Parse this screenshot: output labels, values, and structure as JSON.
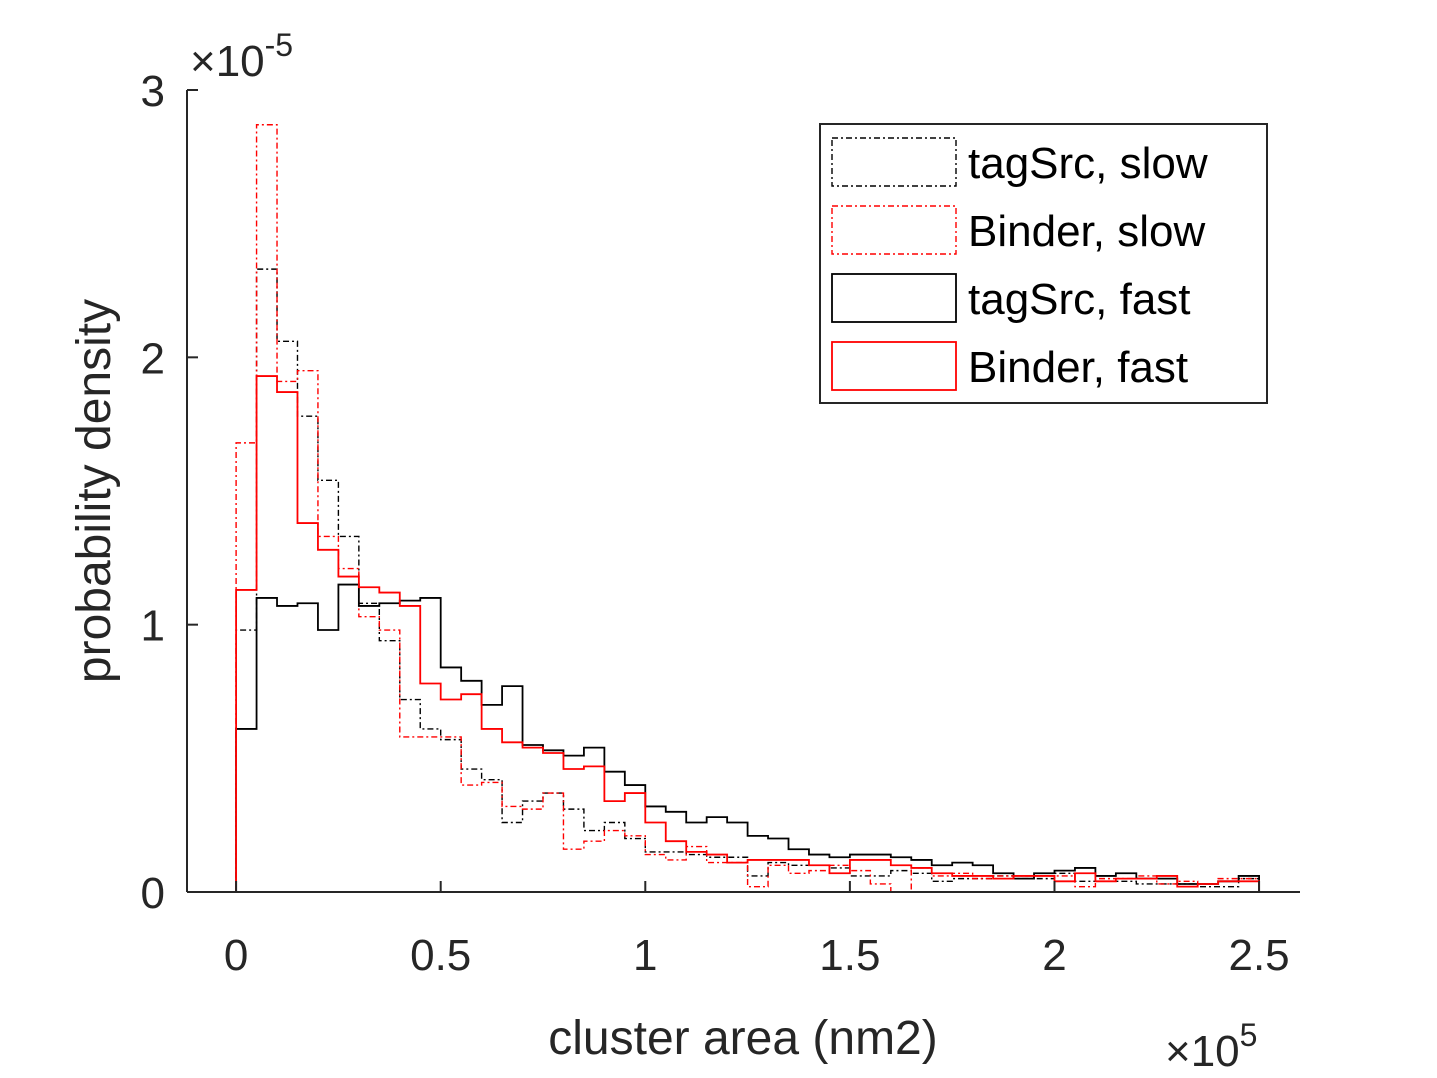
{
  "chart_data": {
    "type": "histogram",
    "xlabel": "cluster area (nm2)",
    "ylabel": "probability density",
    "x_multiplier_label": "×10",
    "x_multiplier_exponent": "5",
    "y_multiplier_label": "×10",
    "y_multiplier_exponent": "-5",
    "xlim": [
      -0.12,
      2.6
    ],
    "ylim": [
      0,
      3
    ],
    "x_ticks": [
      0,
      0.5,
      1,
      1.5,
      2,
      2.5
    ],
    "x_tick_labels": [
      "0",
      "0.5",
      "1",
      "1.5",
      "2",
      "2.5"
    ],
    "y_ticks": [
      0,
      1,
      2,
      3
    ],
    "y_tick_labels": [
      "0",
      "1",
      "2",
      "3"
    ],
    "bin_edges": [
      0.0,
      0.05,
      0.1,
      0.15,
      0.2,
      0.25,
      0.3,
      0.35,
      0.4,
      0.45,
      0.5,
      0.55,
      0.6,
      0.65,
      0.7,
      0.75,
      0.8,
      0.85,
      0.9,
      0.95,
      1.0,
      1.05,
      1.1,
      1.15,
      1.2,
      1.25,
      1.3,
      1.35,
      1.4,
      1.45,
      1.5,
      1.55,
      1.6,
      1.65,
      1.7,
      1.75,
      1.8,
      1.85,
      1.9,
      1.95,
      2.0,
      2.05,
      2.1,
      2.15,
      2.2,
      2.25,
      2.3,
      2.35,
      2.4,
      2.45,
      2.5
    ],
    "legend_position": "top-right",
    "series": [
      {
        "name": "tagSrc, slow",
        "color": "#000000",
        "dash": "dashdot",
        "values": [
          0.98,
          2.33,
          2.06,
          1.78,
          1.54,
          1.33,
          1.08,
          0.94,
          0.72,
          0.61,
          0.57,
          0.46,
          0.42,
          0.26,
          0.34,
          0.37,
          0.31,
          0.23,
          0.26,
          0.2,
          0.15,
          0.15,
          0.14,
          0.13,
          0.13,
          0.06,
          0.11,
          0.1,
          0.1,
          0.09,
          0.06,
          0.06,
          0.08,
          0.07,
          0.04,
          0.05,
          0.05,
          0.06,
          0.06,
          0.05,
          0.07,
          0.04,
          0.04,
          0.04,
          0.03,
          0.03,
          0.03,
          0.02,
          0.02,
          0.05
        ]
      },
      {
        "name": "Binder, slow",
        "color": "#ff0000",
        "dash": "dashdot",
        "values": [
          1.68,
          2.87,
          1.91,
          1.95,
          1.33,
          1.21,
          1.03,
          0.98,
          0.58,
          0.58,
          0.58,
          0.4,
          0.41,
          0.32,
          0.31,
          0.37,
          0.16,
          0.19,
          0.23,
          0.21,
          0.14,
          0.12,
          0.17,
          0.11,
          0.11,
          0.02,
          0.1,
          0.07,
          0.08,
          0.1,
          0.08,
          0.03,
          0.0,
          0.09,
          0.06,
          0.07,
          0.05,
          0.06,
          0.05,
          0.06,
          0.06,
          0.02,
          0.05,
          0.05,
          0.06,
          0.03,
          0.04,
          0.03,
          0.05,
          0.05
        ]
      },
      {
        "name": "tagSrc, fast",
        "color": "#000000",
        "dash": "solid",
        "values": [
          0.61,
          1.1,
          1.07,
          1.08,
          0.98,
          1.15,
          1.07,
          1.08,
          1.09,
          1.1,
          0.84,
          0.79,
          0.7,
          0.77,
          0.55,
          0.53,
          0.51,
          0.54,
          0.45,
          0.4,
          0.32,
          0.3,
          0.26,
          0.28,
          0.26,
          0.21,
          0.2,
          0.16,
          0.14,
          0.13,
          0.14,
          0.14,
          0.13,
          0.12,
          0.1,
          0.11,
          0.1,
          0.07,
          0.05,
          0.07,
          0.08,
          0.09,
          0.06,
          0.07,
          0.05,
          0.05,
          0.03,
          0.03,
          0.04,
          0.06
        ]
      },
      {
        "name": "Binder, fast",
        "color": "#ff0000",
        "dash": "solid",
        "values": [
          1.13,
          1.93,
          1.87,
          1.38,
          1.28,
          1.18,
          1.14,
          1.12,
          1.07,
          0.78,
          0.72,
          0.74,
          0.61,
          0.56,
          0.54,
          0.52,
          0.46,
          0.47,
          0.34,
          0.37,
          0.26,
          0.19,
          0.15,
          0.14,
          0.11,
          0.12,
          0.12,
          0.12,
          0.1,
          0.07,
          0.12,
          0.12,
          0.1,
          0.09,
          0.07,
          0.06,
          0.06,
          0.05,
          0.06,
          0.06,
          0.04,
          0.07,
          0.04,
          0.05,
          0.05,
          0.06,
          0.02,
          0.03,
          0.04,
          0.04
        ]
      }
    ]
  }
}
